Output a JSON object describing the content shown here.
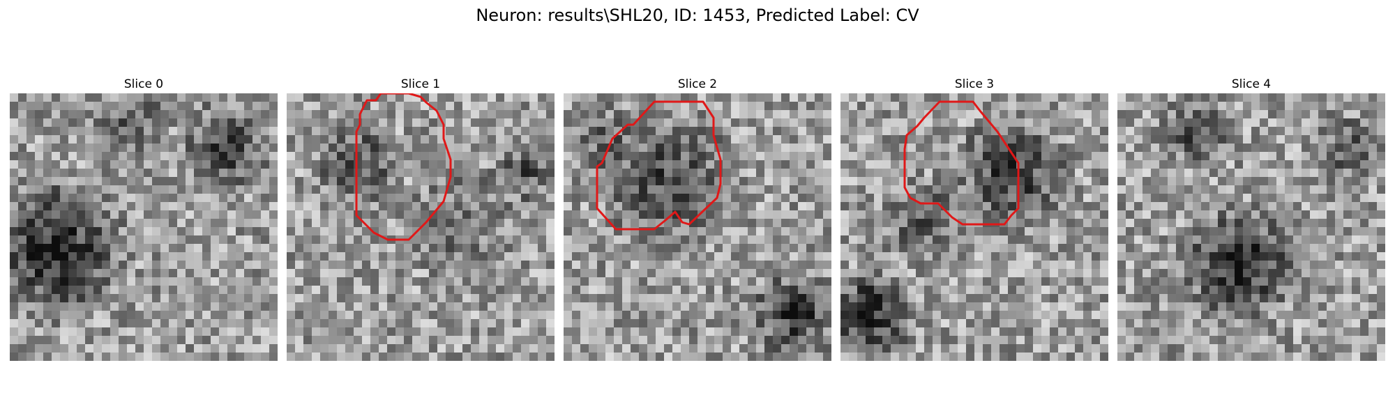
{
  "title": "Neuron: results\\SHL20, ID: 1453, Predicted Label: CV",
  "contour_color": "#e01818",
  "panels": [
    {
      "label": "Slice 0",
      "has_contour": false
    },
    {
      "label": "Slice 1",
      "has_contour": true
    },
    {
      "label": "Slice 2",
      "has_contour": true
    },
    {
      "label": "Slice 3",
      "has_contour": true
    },
    {
      "label": "Slice 4",
      "has_contour": false
    }
  ]
}
